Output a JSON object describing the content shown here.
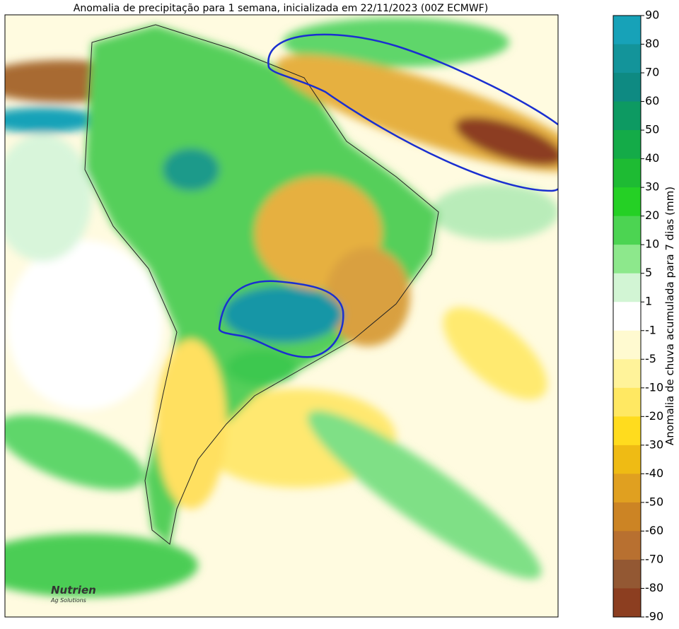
{
  "title": "Anomalia de precipitação para 1 semana, inicializada em 22/11/2023 (00Z ECMWF)",
  "colorbar": {
    "label": "Anomalia de chuva acumulada para 7 dias (mm)",
    "levels": [
      90,
      80,
      70,
      60,
      50,
      40,
      30,
      20,
      10,
      5,
      1,
      -1,
      -5,
      -10,
      -20,
      -30,
      -40,
      -50,
      -60,
      -70,
      -80,
      -90
    ],
    "colors": [
      "#17a2b8",
      "#13949a",
      "#0e8a82",
      "#0d9a62",
      "#14ab48",
      "#1ebb33",
      "#25d025",
      "#4cd452",
      "#8de88c",
      "#d2f5d4",
      "#ffffff",
      "#fffad0",
      "#fff39a",
      "#ffe862",
      "#ffdc1e",
      "#efbb14",
      "#e0a020",
      "#cc8424",
      "#b87030",
      "#935833",
      "#8c3e20"
    ]
  },
  "logo": {
    "name": "Nutrien",
    "tagline": "Ag Solutions"
  }
}
